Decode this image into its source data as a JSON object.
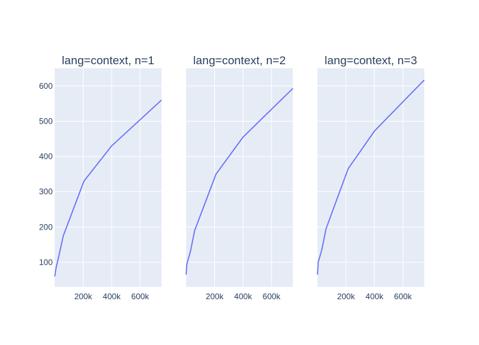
{
  "colors": {
    "plot_bg": "#E5ECF6",
    "grid": "#ffffff",
    "line": "#636EFA",
    "text": "#2a3f5f",
    "page_bg": "#ffffff"
  },
  "chart_data": [
    {
      "type": "line",
      "title": "lang=context, n=1",
      "xlabel": "",
      "ylabel": "",
      "xlim": [
        0,
        750000
      ],
      "ylim": [
        30,
        650
      ],
      "x_ticks": [
        200000,
        400000,
        600000
      ],
      "x_tick_labels": [
        "200k",
        "400k",
        "600k"
      ],
      "y_ticks": [
        100,
        200,
        300,
        400,
        500,
        600
      ],
      "y_tick_labels": [
        "100",
        "200",
        "300",
        "400",
        "500",
        "600"
      ],
      "grid": true,
      "series": [
        {
          "x": [
            0,
            10000,
            30000,
            60000,
            205000,
            400000,
            750000
          ],
          "y": [
            60,
            85,
            120,
            175,
            330,
            430,
            560
          ]
        }
      ]
    },
    {
      "type": "line",
      "title": "lang=context, n=2",
      "xlabel": "",
      "ylabel": "",
      "xlim": [
        0,
        750000
      ],
      "ylim": [
        30,
        650
      ],
      "x_ticks": [
        200000,
        400000,
        600000
      ],
      "x_tick_labels": [
        "200k",
        "400k",
        "600k"
      ],
      "y_ticks": [
        100,
        200,
        300,
        400,
        500,
        600
      ],
      "grid": true,
      "series": [
        {
          "x": [
            0,
            5000,
            30000,
            60000,
            210000,
            400000,
            750000
          ],
          "y": [
            65,
            95,
            130,
            190,
            350,
            455,
            593
          ]
        }
      ]
    },
    {
      "type": "line",
      "title": "lang=context, n=3",
      "xlabel": "",
      "ylabel": "",
      "xlim": [
        0,
        750000
      ],
      "ylim": [
        30,
        650
      ],
      "x_ticks": [
        200000,
        400000,
        600000
      ],
      "x_tick_labels": [
        "200k",
        "400k",
        "600k"
      ],
      "y_ticks": [
        100,
        200,
        300,
        400,
        500,
        600
      ],
      "grid": true,
      "series": [
        {
          "x": [
            0,
            5000,
            30000,
            60000,
            215000,
            400000,
            750000
          ],
          "y": [
            65,
            100,
            135,
            195,
            365,
            472,
            617
          ]
        }
      ]
    }
  ]
}
